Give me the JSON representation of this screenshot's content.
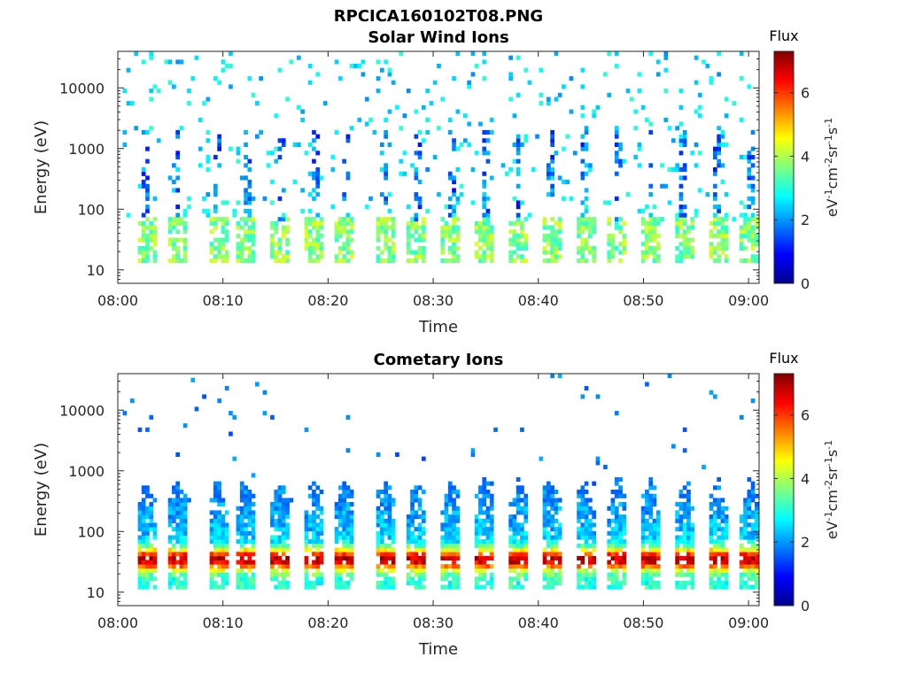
{
  "figure": {
    "title": "RPCICA160102T08.PNG",
    "colormap": "jet"
  },
  "panels": [
    {
      "title": "Solar Wind Ions",
      "xlabel": "Time",
      "ylabel": "Energy (eV)",
      "colorbar": {
        "title": "Flux",
        "label": "eV-1cm-2sr-1s-1",
        "ticks": [
          "0",
          "2",
          "4",
          "6"
        ],
        "range": [
          0,
          7.3
        ]
      }
    },
    {
      "title": "Cometary Ions",
      "xlabel": "Time",
      "ylabel": "Energy (eV)",
      "colorbar": {
        "title": "Flux",
        "label": "eV-1cm-2sr-1s-1",
        "ticks": [
          "0",
          "2",
          "4",
          "6"
        ],
        "range": [
          0,
          7.3
        ]
      }
    }
  ],
  "chart_data": [
    {
      "type": "heatmap",
      "title": "Solar Wind Ions",
      "xlabel": "Time",
      "ylabel": "Energy (eV)",
      "x_ticks": [
        "08:00",
        "08:10",
        "08:20",
        "08:30",
        "08:40",
        "08:50",
        "09:00"
      ],
      "y_ticks": [
        "10",
        "100",
        "1000",
        "10000"
      ],
      "y_scale": "log",
      "x_range": [
        "08:00",
        "09:01"
      ],
      "y_range": [
        6,
        40000
      ],
      "color_range": [
        0,
        7.3
      ],
      "burst_times_min": [
        2.5,
        5.5,
        9.3,
        12.0,
        15.3,
        18.5,
        21.5,
        25.3,
        28.3,
        31.5,
        34.7,
        37.9,
        41.0,
        44.2,
        47.3,
        50.5,
        53.7,
        56.8,
        60.0
      ],
      "description_levels": {
        "peak_energy_eV": 35,
        "peak_flux": 4.2,
        "sparse_high_energy_flux": 2.5
      }
    },
    {
      "type": "heatmap",
      "title": "Cometary Ions",
      "xlabel": "Time",
      "ylabel": "Energy (eV)",
      "x_ticks": [
        "08:00",
        "08:10",
        "08:20",
        "08:30",
        "08:40",
        "08:50",
        "09:00"
      ],
      "y_ticks": [
        "10",
        "100",
        "1000",
        "10000"
      ],
      "y_scale": "log",
      "x_range": [
        "08:00",
        "09:01"
      ],
      "y_range": [
        6,
        40000
      ],
      "color_range": [
        0,
        7.3
      ],
      "burst_times_min": [
        2.5,
        5.5,
        9.3,
        12.0,
        15.3,
        18.5,
        21.5,
        25.3,
        28.3,
        31.5,
        34.7,
        37.9,
        41.0,
        44.2,
        47.3,
        50.5,
        53.7,
        56.8,
        60.0
      ],
      "description_levels": {
        "peak_energy_eV": 35,
        "peak_flux": 6.5,
        "sparse_high_energy_flux": 2.0
      }
    }
  ]
}
